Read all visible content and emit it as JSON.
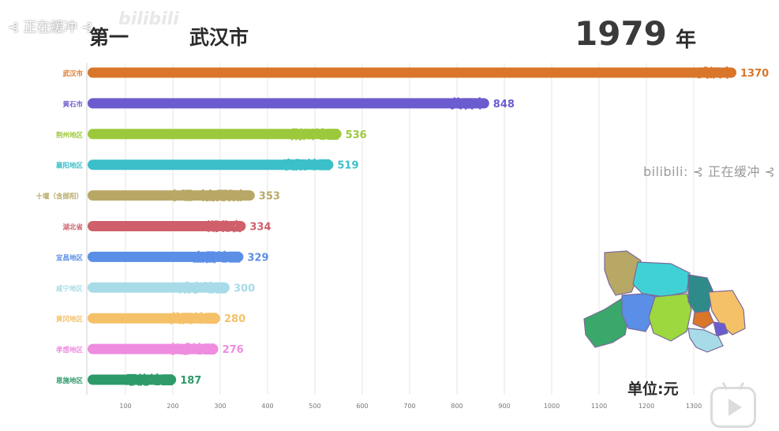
{
  "overlay": {
    "buffering_top_left": "⊰ 正在缓冲 ⊰",
    "watermark_right": "bilibili: ⊰ 正在缓冲 ⊰",
    "logo_text": "bilibili"
  },
  "header": {
    "rank": "第一",
    "top_city": "武汉市",
    "year": "1979",
    "year_unit": "年"
  },
  "footer": {
    "unit_label": "单位:元"
  },
  "chart_data": {
    "type": "bar",
    "orientation": "horizontal",
    "categories": [
      "武汉市",
      "黄石市",
      "荆州地区",
      "襄阳地区",
      "十堰（含郧阳）",
      "湖北省",
      "宜昌地区",
      "咸宁地区",
      "黄冈地区",
      "孝感地区",
      "恩施地区"
    ],
    "values": [
      1370,
      848,
      536,
      519,
      353,
      334,
      329,
      300,
      280,
      276,
      187
    ],
    "colors": [
      "#d9762a",
      "#6a5ccf",
      "#9cc93b",
      "#3bbfc9",
      "#b8a865",
      "#cf5f6a",
      "#5b8ee6",
      "#a8dbe8",
      "#f5c168",
      "#ee8ce0",
      "#2e9a6a"
    ],
    "x_ticks": [
      100,
      200,
      300,
      400,
      500,
      600,
      700,
      800,
      900,
      1000,
      1100,
      1200,
      1300
    ],
    "xlim": [
      0,
      1370
    ],
    "grid": true,
    "legend": "none"
  },
  "map": {
    "regions": [
      {
        "name": "十堰（含郧阳）",
        "color": "#b8a865"
      },
      {
        "name": "襄阳地区",
        "color": "#3fd1d6"
      },
      {
        "name": "恩施地区",
        "color": "#3aa86a"
      },
      {
        "name": "宜昌地区",
        "color": "#5b8ee6"
      },
      {
        "name": "荆州地区",
        "color": "#9cd83e"
      },
      {
        "name": "孝感地区",
        "color": "#2f8a8a"
      },
      {
        "name": "黄冈地区",
        "color": "#f5c168"
      },
      {
        "name": "武汉市",
        "color": "#d9762a"
      },
      {
        "name": "黄石市",
        "color": "#6a5ccf"
      },
      {
        "name": "咸宁地区",
        "color": "#a8dbe8"
      }
    ]
  }
}
